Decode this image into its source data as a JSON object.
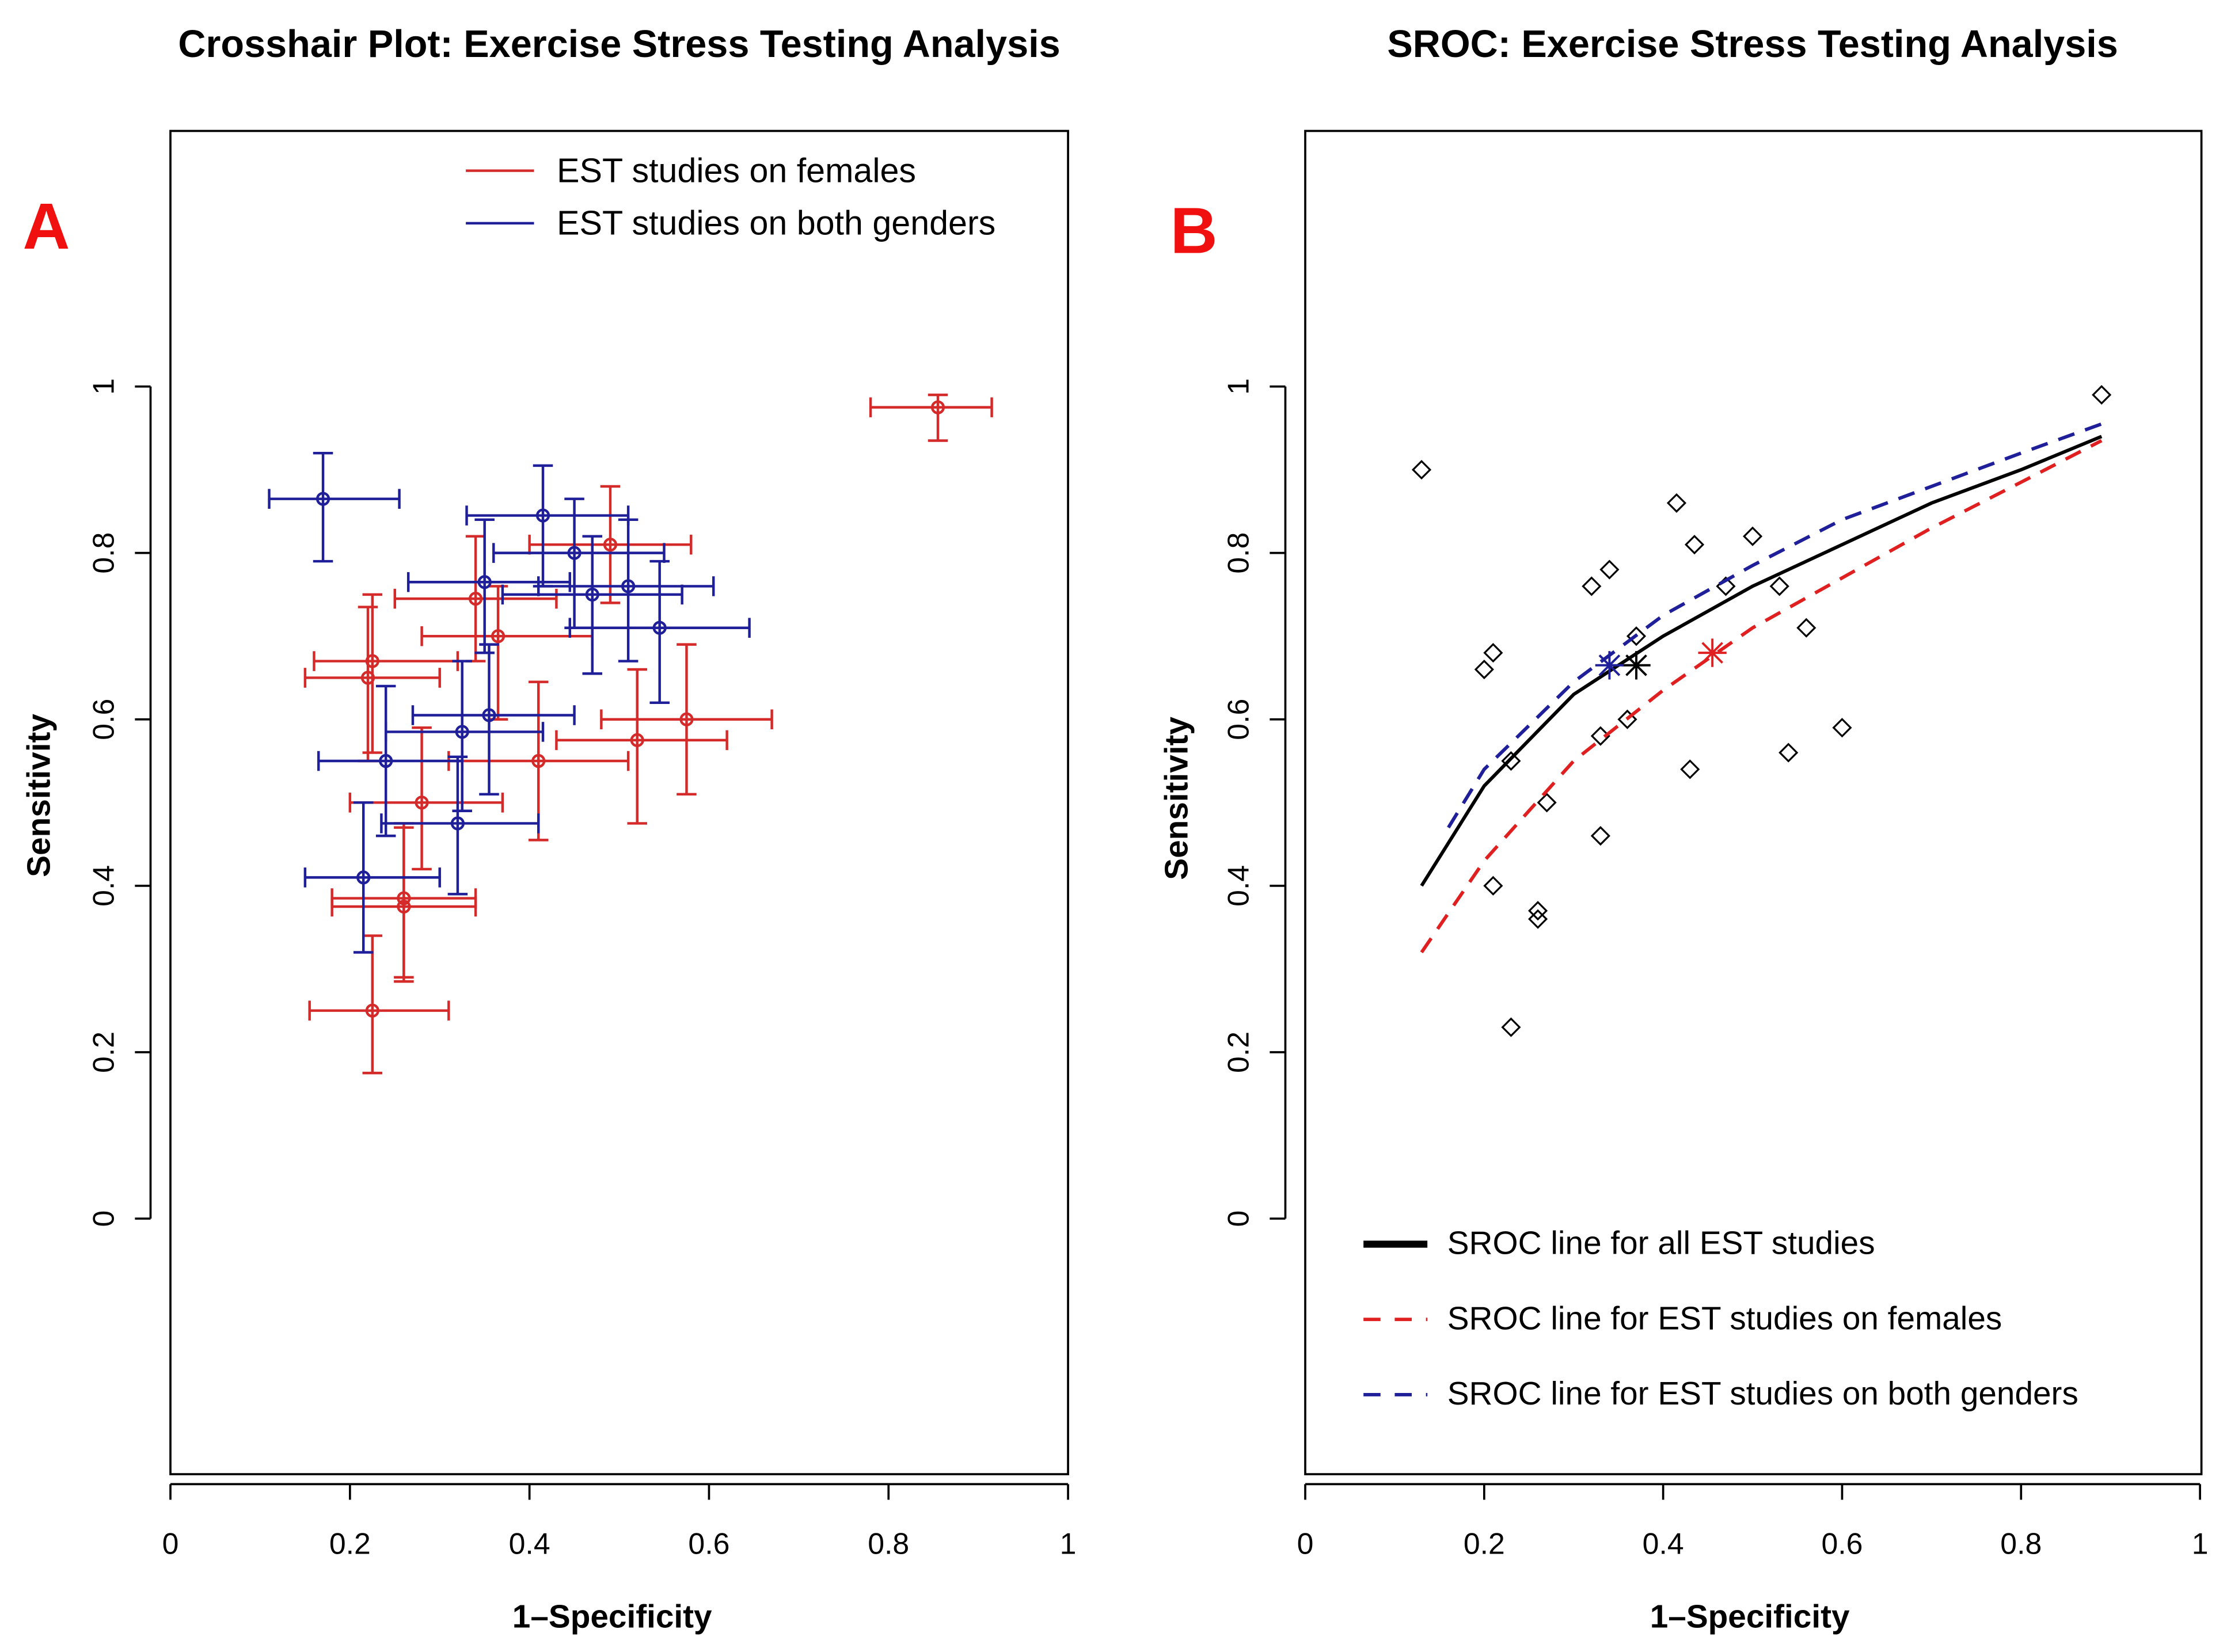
{
  "chart_data": [
    {
      "type": "scatter",
      "panel_letter": "A",
      "title": "Crosshair Plot: Exercise Stress Testing Analysis",
      "xlabel": "1–Specificity",
      "ylabel": "Sensitivity",
      "xlim": [
        0,
        1
      ],
      "ylim": [
        -0.31,
        1.31
      ],
      "xticks": [
        "0",
        "0.2",
        "0.4",
        "0.6",
        "0.8",
        "1"
      ],
      "yticks": [
        "0",
        "0.2",
        "0.4",
        "0.6",
        "0.8",
        "1"
      ],
      "legend_position": "top-right",
      "series": [
        {
          "name": "EST studies on females",
          "color": "#d42a2a",
          "points": [
            {
              "x": 0.855,
              "y": 0.975,
              "xlo": 0.78,
              "xhi": 0.915,
              "ylo": 0.935,
              "yhi": 0.99
            },
            {
              "x": 0.49,
              "y": 0.81,
              "xlo": 0.4,
              "xhi": 0.58,
              "ylo": 0.74,
              "yhi": 0.88
            },
            {
              "x": 0.34,
              "y": 0.745,
              "xlo": 0.25,
              "xhi": 0.43,
              "ylo": 0.67,
              "yhi": 0.82
            },
            {
              "x": 0.365,
              "y": 0.7,
              "xlo": 0.28,
              "xhi": 0.47,
              "ylo": 0.6,
              "yhi": 0.76
            },
            {
              "x": 0.225,
              "y": 0.67,
              "xlo": 0.16,
              "xhi": 0.32,
              "ylo": 0.56,
              "yhi": 0.75
            },
            {
              "x": 0.22,
              "y": 0.65,
              "xlo": 0.15,
              "xhi": 0.3,
              "ylo": 0.55,
              "yhi": 0.735
            },
            {
              "x": 0.575,
              "y": 0.6,
              "xlo": 0.48,
              "xhi": 0.67,
              "ylo": 0.51,
              "yhi": 0.69
            },
            {
              "x": 0.52,
              "y": 0.575,
              "xlo": 0.43,
              "xhi": 0.62,
              "ylo": 0.475,
              "yhi": 0.66
            },
            {
              "x": 0.41,
              "y": 0.55,
              "xlo": 0.31,
              "xhi": 0.51,
              "ylo": 0.455,
              "yhi": 0.645
            },
            {
              "x": 0.28,
              "y": 0.5,
              "xlo": 0.2,
              "xhi": 0.37,
              "ylo": 0.42,
              "yhi": 0.59
            },
            {
              "x": 0.26,
              "y": 0.385,
              "xlo": 0.18,
              "xhi": 0.34,
              "ylo": 0.29,
              "yhi": 0.475
            },
            {
              "x": 0.26,
              "y": 0.375,
              "xlo": 0.18,
              "xhi": 0.34,
              "ylo": 0.285,
              "yhi": 0.47
            },
            {
              "x": 0.225,
              "y": 0.25,
              "xlo": 0.155,
              "xhi": 0.31,
              "ylo": 0.175,
              "yhi": 0.34
            }
          ]
        },
        {
          "name": "EST studies on both genders",
          "color": "#1f1f9a",
          "points": [
            {
              "x": 0.17,
              "y": 0.865,
              "xlo": 0.11,
              "xhi": 0.255,
              "ylo": 0.79,
              "yhi": 0.92
            },
            {
              "x": 0.415,
              "y": 0.845,
              "xlo": 0.33,
              "xhi": 0.51,
              "ylo": 0.76,
              "yhi": 0.905
            },
            {
              "x": 0.45,
              "y": 0.8,
              "xlo": 0.36,
              "xhi": 0.55,
              "ylo": 0.71,
              "yhi": 0.865
            },
            {
              "x": 0.35,
              "y": 0.765,
              "xlo": 0.265,
              "xhi": 0.445,
              "ylo": 0.68,
              "yhi": 0.84
            },
            {
              "x": 0.51,
              "y": 0.76,
              "xlo": 0.41,
              "xhi": 0.605,
              "ylo": 0.67,
              "yhi": 0.84
            },
            {
              "x": 0.47,
              "y": 0.75,
              "xlo": 0.37,
              "xhi": 0.57,
              "ylo": 0.655,
              "yhi": 0.82
            },
            {
              "x": 0.545,
              "y": 0.71,
              "xlo": 0.445,
              "xhi": 0.645,
              "ylo": 0.62,
              "yhi": 0.79
            },
            {
              "x": 0.355,
              "y": 0.605,
              "xlo": 0.27,
              "xhi": 0.45,
              "ylo": 0.51,
              "yhi": 0.69
            },
            {
              "x": 0.325,
              "y": 0.585,
              "xlo": 0.24,
              "xhi": 0.415,
              "ylo": 0.49,
              "yhi": 0.67
            },
            {
              "x": 0.24,
              "y": 0.55,
              "xlo": 0.165,
              "xhi": 0.325,
              "ylo": 0.46,
              "yhi": 0.64
            },
            {
              "x": 0.32,
              "y": 0.475,
              "xlo": 0.235,
              "xhi": 0.41,
              "ylo": 0.39,
              "yhi": 0.555
            },
            {
              "x": 0.215,
              "y": 0.41,
              "xlo": 0.15,
              "xhi": 0.3,
              "ylo": 0.32,
              "yhi": 0.5
            }
          ]
        }
      ]
    },
    {
      "type": "line",
      "panel_letter": "B",
      "title": "SROC: Exercise Stress Testing Analysis",
      "xlabel": "1–Specificity",
      "ylabel": "Sensitivity",
      "xlim": [
        0,
        1
      ],
      "ylim": [
        -0.31,
        1.31
      ],
      "xticks": [
        "0",
        "0.2",
        "0.4",
        "0.6",
        "0.8",
        "1"
      ],
      "yticks": [
        "0",
        "0.2",
        "0.4",
        "0.6",
        "0.8",
        "1"
      ],
      "legend_position": "bottom-left",
      "study_points": [
        [
          0.13,
          0.9
        ],
        [
          0.89,
          0.99
        ],
        [
          0.415,
          0.86
        ],
        [
          0.435,
          0.81
        ],
        [
          0.5,
          0.82
        ],
        [
          0.32,
          0.76
        ],
        [
          0.34,
          0.78
        ],
        [
          0.47,
          0.76
        ],
        [
          0.53,
          0.76
        ],
        [
          0.56,
          0.71
        ],
        [
          0.37,
          0.7
        ],
        [
          0.21,
          0.68
        ],
        [
          0.2,
          0.66
        ],
        [
          0.23,
          0.55
        ],
        [
          0.36,
          0.6
        ],
        [
          0.33,
          0.58
        ],
        [
          0.27,
          0.5
        ],
        [
          0.43,
          0.54
        ],
        [
          0.54,
          0.56
        ],
        [
          0.6,
          0.59
        ],
        [
          0.33,
          0.46
        ],
        [
          0.21,
          0.4
        ],
        [
          0.26,
          0.37
        ],
        [
          0.26,
          0.36
        ],
        [
          0.23,
          0.23
        ]
      ],
      "series": [
        {
          "name": "SROC line for all EST studies",
          "color": "#000000",
          "style": "solid",
          "summary": [
            0.37,
            0.665
          ],
          "x": [
            0.13,
            0.2,
            0.3,
            0.4,
            0.5,
            0.6,
            0.7,
            0.8,
            0.89
          ],
          "y": [
            0.4,
            0.52,
            0.63,
            0.7,
            0.76,
            0.81,
            0.86,
            0.9,
            0.94
          ]
        },
        {
          "name": "SROC line for EST studies on females",
          "color": "#e02020",
          "style": "dashed",
          "summary": [
            0.455,
            0.68
          ],
          "x": [
            0.13,
            0.2,
            0.3,
            0.4,
            0.5,
            0.6,
            0.7,
            0.8,
            0.89
          ],
          "y": [
            0.32,
            0.43,
            0.55,
            0.635,
            0.71,
            0.77,
            0.83,
            0.885,
            0.935
          ]
        },
        {
          "name": "SROC line for EST studies on both genders",
          "color": "#1f1f9a",
          "style": "dashed",
          "summary": [
            0.34,
            0.665
          ],
          "x": [
            0.16,
            0.2,
            0.3,
            0.4,
            0.5,
            0.6,
            0.7,
            0.8,
            0.89
          ],
          "y": [
            0.47,
            0.54,
            0.645,
            0.725,
            0.785,
            0.84,
            0.88,
            0.92,
            0.955
          ]
        }
      ]
    }
  ]
}
